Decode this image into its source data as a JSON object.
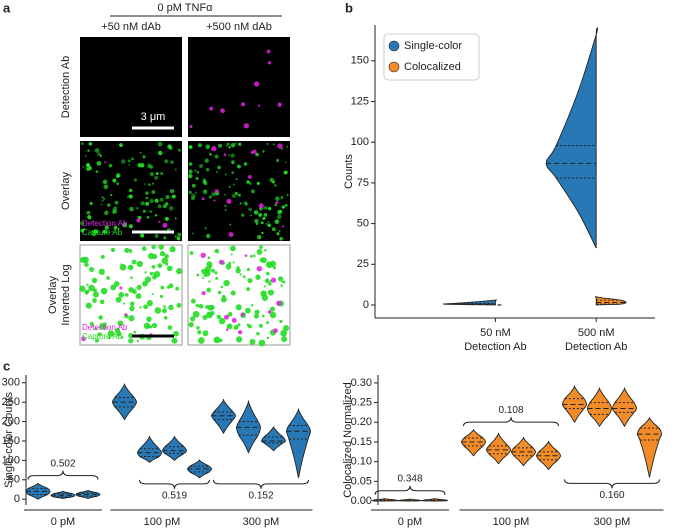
{
  "chart_data": [
    {
      "type": "image-grid",
      "panel": "a",
      "header": "0 pM TNFα",
      "columns": [
        "+50 nM dAb",
        "+500 nM dAb"
      ],
      "rows": [
        [
          "Detection Ab"
        ],
        [
          "Overlay"
        ],
        [
          "Overlay",
          "Inverted Log"
        ]
      ],
      "channels": [
        {
          "name": "Detection Ab",
          "color": "#e020e0"
        },
        {
          "name": "Capture Ab",
          "color": "#22dd22"
        }
      ],
      "scale_bar": "3 μm"
    },
    {
      "type": "split-violin",
      "panel": "b",
      "y_label": "Counts",
      "categories": [
        [
          "50 nM",
          "Detection Ab"
        ],
        [
          "500 nM",
          "Detection Ab"
        ]
      ],
      "series": [
        {
          "name": "Single-color",
          "color": "#2878b5",
          "values": [
            [
              0,
              0,
              0.5,
              1,
              3
            ],
            [
              35,
              78,
              87,
              98,
              166
            ]
          ]
        },
        {
          "name": "Colocalized",
          "color": "#f28c28",
          "values": [
            [
              0,
              0,
              0,
              0,
              0
            ],
            [
              0,
              0.5,
              1.5,
              3,
              5
            ]
          ]
        }
      ],
      "ylim": [
        -8,
        172
      ],
      "yticks": [
        0,
        25,
        50,
        75,
        100,
        125,
        150
      ],
      "legend": "upper left"
    },
    {
      "type": "violin",
      "panel": "c",
      "y_label": "Single-color Counts",
      "color": "#2878b5",
      "groups": [
        {
          "label": "0 pM",
          "violins": [
            [
              0,
              12,
              20,
              28,
              40
            ],
            [
              2,
              6,
              10,
              14,
              20
            ],
            [
              2,
              8,
              12,
              16,
              22
            ]
          ]
        },
        {
          "label": "100 pM",
          "violins": [
            [
              205,
              238,
              250,
              262,
              295
            ],
            [
              95,
              110,
              120,
              130,
              160
            ],
            [
              100,
              118,
              125,
              135,
              160
            ],
            [
              55,
              70,
              78,
              85,
              100
            ]
          ]
        },
        {
          "label": "300 pM",
          "violins": [
            [
              170,
              205,
              215,
              225,
              255
            ],
            [
              120,
              165,
              185,
              200,
              250
            ],
            [
              125,
              145,
              150,
              160,
              185
            ],
            [
              55,
              155,
              175,
              190,
              230
            ]
          ]
        }
      ],
      "annotations": [
        {
          "label": "0.502",
          "group": 0,
          "from": 0,
          "to": 2,
          "side": "above"
        },
        {
          "label": "0.519",
          "group": 1,
          "from": 1,
          "to": 3,
          "side": "below"
        },
        {
          "label": "0.152",
          "group": 2,
          "from": 0,
          "to": 3,
          "side": "below"
        }
      ],
      "ylim": [
        -15,
        320
      ],
      "yticks": [
        0,
        50,
        100,
        150,
        200,
        250,
        300
      ]
    },
    {
      "type": "violin",
      "y_label": "Colocalized Normalized",
      "color": "#f28c28",
      "groups": [
        {
          "label": "0 pM",
          "violins": [
            [
              0,
              0,
              0.001,
              0.003,
              0.006
            ],
            [
              0,
              0,
              0.001,
              0.002,
              0.005
            ],
            [
              0,
              0,
              0.001,
              0.003,
              0.006
            ]
          ]
        },
        {
          "label": "100 pM",
          "violins": [
            [
              0.115,
              0.14,
              0.15,
              0.16,
              0.18
            ],
            [
              0.095,
              0.12,
              0.13,
              0.14,
              0.17
            ],
            [
              0.09,
              0.115,
              0.125,
              0.135,
              0.16
            ],
            [
              0.08,
              0.105,
              0.115,
              0.125,
              0.15
            ]
          ]
        },
        {
          "label": "300 pM",
          "violins": [
            [
              0.2,
              0.235,
              0.245,
              0.26,
              0.29
            ],
            [
              0.19,
              0.22,
              0.235,
              0.25,
              0.285
            ],
            [
              0.19,
              0.225,
              0.235,
              0.25,
              0.285
            ],
            [
              0.06,
              0.155,
              0.17,
              0.185,
              0.21
            ]
          ]
        }
      ],
      "annotations": [
        {
          "label": "0.348",
          "group": 0,
          "from": 0,
          "to": 2,
          "side": "above"
        },
        {
          "label": "0.108",
          "group": 1,
          "from": 0,
          "to": 3,
          "side": "above"
        },
        {
          "label": "0.160",
          "group": 2,
          "from": 0,
          "to": 3,
          "side": "below"
        }
      ],
      "ylim": [
        -0.01,
        0.32
      ],
      "yticks": [
        {
          "value": 0,
          "label": "0.00"
        },
        {
          "value": 0.05,
          "label": "0.05"
        },
        {
          "value": 0.1,
          "label": "0.10"
        },
        {
          "value": 0.15,
          "label": "0.15"
        },
        {
          "value": 0.2,
          "label": "0.20"
        },
        {
          "value": 0.25,
          "label": "0.25"
        },
        {
          "value": 0.3,
          "label": "0.30"
        }
      ]
    }
  ]
}
